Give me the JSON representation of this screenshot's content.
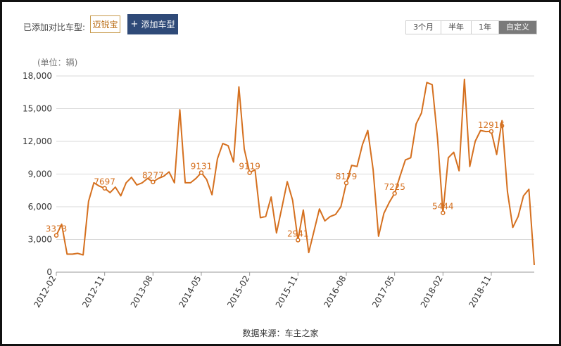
{
  "toolbar": {
    "compare_label": "已添加对比车型:",
    "model_tag": "迈锐宝",
    "add_button": "添加车型",
    "ranges": [
      {
        "label": "3个月",
        "active": false
      },
      {
        "label": "半年",
        "active": false
      },
      {
        "label": "1年",
        "active": false
      },
      {
        "label": "自定义",
        "active": true
      }
    ]
  },
  "footer": {
    "source": "数据来源：车主之家"
  },
  "colors": {
    "line": "#d5701f",
    "grid": "#d8d8d8",
    "axis_text": "#333333",
    "label": "#d5701f",
    "button": "#2f4a78"
  },
  "chart_data": {
    "type": "line",
    "unit_label": "(单位：辆)",
    "ylim": [
      0,
      18000
    ],
    "yticks": [
      "0",
      "3,000",
      "6,000",
      "9,000",
      "12,000",
      "15,000",
      "18,000"
    ],
    "xticks": [
      {
        "label": "2012-02",
        "index": 0
      },
      {
        "label": "2012-11",
        "index": 9
      },
      {
        "label": "2013-08",
        "index": 18
      },
      {
        "label": "2014-05",
        "index": 27
      },
      {
        "label": "2015-02",
        "index": 36
      },
      {
        "label": "2015-11",
        "index": 45
      },
      {
        "label": "2016-08",
        "index": 54
      },
      {
        "label": "2017-05",
        "index": 63
      },
      {
        "label": "2018-02",
        "index": 72
      },
      {
        "label": "2018-11",
        "index": 81
      }
    ],
    "x_start": "2012-02",
    "series": [
      {
        "values": [
          3373,
          4400,
          1650,
          1650,
          1720,
          1580,
          6500,
          8200,
          7900,
          7697,
          7300,
          7800,
          7000,
          8200,
          8700,
          8000,
          8200,
          8600,
          8277,
          8600,
          8800,
          9200,
          8200,
          14900,
          8200,
          8200,
          8600,
          9131,
          8500,
          7100,
          10400,
          11800,
          11600,
          10100,
          17000,
          11300,
          9119,
          9400,
          5000,
          5100,
          6900,
          3600,
          5900,
          8300,
          6600,
          2941,
          5700,
          1800,
          3800,
          5800,
          4700,
          5100,
          5300,
          6000,
          8179,
          9800,
          9700,
          11700,
          13000,
          9400,
          3300,
          5400,
          6400,
          7225,
          8800,
          10300,
          10500,
          13600,
          14600,
          17400,
          17200,
          12200,
          5444,
          10500,
          11000,
          9300,
          17700,
          9700,
          12000,
          13000,
          12900,
          12916,
          10800,
          13900,
          7400,
          4100,
          5100,
          7000,
          7600,
          650
        ],
        "labels": [
          {
            "index": 0,
            "text": "3373"
          },
          {
            "index": 9,
            "text": "7697"
          },
          {
            "index": 18,
            "text": "8277"
          },
          {
            "index": 27,
            "text": "9131"
          },
          {
            "index": 36,
            "text": "9119"
          },
          {
            "index": 45,
            "text": "2941"
          },
          {
            "index": 54,
            "text": "8179"
          },
          {
            "index": 63,
            "text": "7225"
          },
          {
            "index": 72,
            "text": "5444"
          },
          {
            "index": 81,
            "text": "12916"
          }
        ]
      }
    ]
  }
}
